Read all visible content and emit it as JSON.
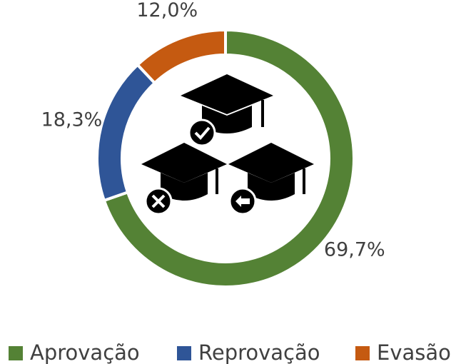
{
  "chart_data": {
    "type": "donut",
    "categories": [
      "Aprovação",
      "Reprovação",
      "Evasão"
    ],
    "values": [
      69.7,
      18.3,
      12.0
    ],
    "value_labels": [
      "69,7%",
      "18,3%",
      "12,0%"
    ],
    "colors": [
      "#548235",
      "#2f5597",
      "#c55a11"
    ],
    "legend": "bottom"
  }
}
